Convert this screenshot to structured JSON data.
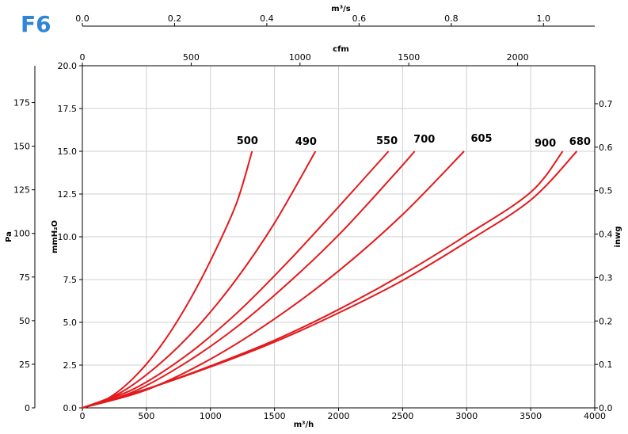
{
  "brand": {
    "label": "F6",
    "color": "#2f86d6"
  },
  "curve_color": "#e31a1c",
  "chart_data": {
    "type": "line",
    "title": "",
    "xlabel": "m³/h",
    "ylabel": "mmH₂O",
    "xlim": [
      0,
      4000
    ],
    "ylim": [
      0,
      20
    ],
    "grid": true,
    "x_ticks": [
      0,
      500,
      1000,
      1500,
      2000,
      2500,
      3000,
      3500,
      4000
    ],
    "y_ticks": [
      "0.0",
      "2.5",
      "5.0",
      "7.5",
      "10.0",
      "12.5",
      "15.0",
      "17.5",
      "20.0"
    ],
    "secondary_axes": {
      "top_cfm": {
        "label": "cfm",
        "ticks": [
          0,
          500,
          1000,
          1500,
          2000
        ]
      },
      "top_m3s": {
        "label": "m³/s",
        "ticks": [
          "0.0",
          "0.2",
          "0.4",
          "0.6",
          "0.8",
          "1.0"
        ]
      },
      "left_pa": {
        "label": "Pa",
        "ticks": [
          0,
          25,
          50,
          75,
          100,
          125,
          150,
          175
        ]
      },
      "right_inwg": {
        "label": "inwg",
        "ticks": [
          "0.0",
          "0.1",
          "0.2",
          "0.3",
          "0.4",
          "0.5",
          "0.6",
          "0.7"
        ]
      }
    },
    "series": [
      {
        "name": "500",
        "x": [
          0,
          200,
          400,
          600,
          800,
          1000,
          1200,
          1325
        ],
        "y": [
          0,
          0.55,
          1.75,
          3.5,
          5.8,
          8.6,
          11.9,
          15
        ]
      },
      {
        "name": "490",
        "x": [
          0,
          300,
          600,
          900,
          1200,
          1500,
          1820
        ],
        "y": [
          0,
          0.9,
          2.55,
          4.75,
          7.5,
          10.8,
          15
        ]
      },
      {
        "name": "550",
        "x": [
          0,
          400,
          800,
          1200,
          1600,
          2000,
          2390
        ],
        "y": [
          0,
          1.1,
          3.0,
          5.5,
          8.5,
          11.75,
          15
        ]
      },
      {
        "name": "700",
        "x": [
          0,
          400,
          800,
          1200,
          1600,
          2000,
          2400,
          2595
        ],
        "y": [
          0,
          0.95,
          2.6,
          4.7,
          7.25,
          10.1,
          13.35,
          15
        ]
      },
      {
        "name": "605",
        "x": [
          0,
          500,
          1000,
          1500,
          2000,
          2500,
          2980
        ],
        "y": [
          0,
          1.05,
          2.85,
          5.2,
          8.0,
          11.3,
          15
        ]
      },
      {
        "name": "900",
        "x": [
          0,
          500,
          1000,
          1500,
          2000,
          2500,
          3000,
          3500,
          3750
        ],
        "y": [
          0,
          1.1,
          2.45,
          3.95,
          5.75,
          7.8,
          10.1,
          12.6,
          15
        ]
      },
      {
        "name": "680",
        "x": [
          0,
          500,
          1000,
          1500,
          2000,
          2500,
          3000,
          3500,
          3860
        ],
        "y": [
          0,
          1.1,
          2.4,
          3.85,
          5.55,
          7.45,
          9.7,
          12.15,
          15
        ]
      }
    ]
  }
}
